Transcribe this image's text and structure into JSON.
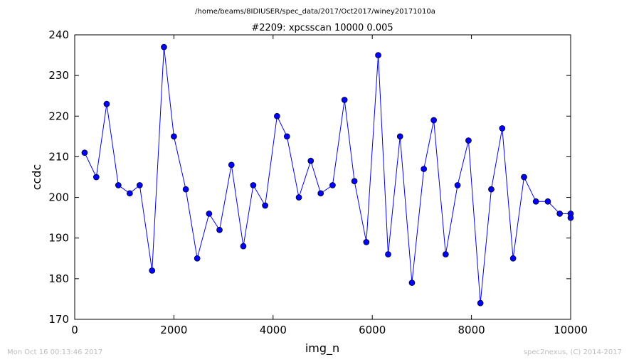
{
  "file_path": "/home/beams/8IDIUSER/spec_data/2017/Oct2017/winey20171010a",
  "footer_left": "Mon Oct 16 00:13:46 2017",
  "footer_right": "spec2nexus, (C) 2014-2017",
  "chart_data": {
    "type": "line",
    "title": "#2209: xpcsscan 10000 0.005",
    "xlabel": "img_n",
    "ylabel": "ccdc",
    "xlim": [
      0,
      10000
    ],
    "ylim": [
      170,
      240
    ],
    "xticks": [
      0,
      2000,
      4000,
      6000,
      8000,
      10000
    ],
    "yticks": [
      170,
      180,
      190,
      200,
      210,
      220,
      230,
      240
    ],
    "grid": false,
    "line_color": "#0000ff",
    "marker_color": "#0000ff",
    "series": [
      {
        "x": [
          200,
          435,
          645,
          880,
          1110,
          1310,
          1560,
          1800,
          2000,
          2240,
          2470,
          2710,
          2920,
          3160,
          3400,
          3600,
          3840,
          4080,
          4280,
          4520,
          4760,
          4960,
          5200,
          5440,
          5640,
          5880,
          6120,
          6320,
          6560,
          6800,
          7040,
          7240,
          7480,
          7720,
          7940,
          8180,
          8400,
          8620,
          8840,
          9060,
          9300,
          9540,
          9780,
          10000,
          10000
        ],
        "y": [
          211,
          205,
          223,
          203,
          201,
          203,
          182,
          237,
          215,
          202,
          185,
          196,
          192,
          208,
          188,
          203,
          198,
          220,
          215,
          200,
          209,
          201,
          203,
          224,
          204,
          189,
          235,
          186,
          215,
          179,
          207,
          219,
          186,
          203,
          214,
          174,
          202,
          217,
          185,
          205,
          199,
          199,
          196,
          196,
          195
        ]
      }
    ]
  }
}
